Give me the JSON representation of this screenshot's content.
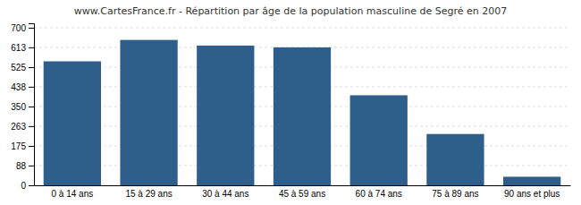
{
  "chart_data": {
    "type": "bar",
    "title": "www.CartesFrance.fr - Répartition par âge de la population masculine de Segré en 2007",
    "categories": [
      "0 à 14 ans",
      "15 à 29 ans",
      "30 à 44 ans",
      "45 à 59 ans",
      "60 à 74 ans",
      "75 à 89 ans",
      "90 ans et plus"
    ],
    "values": [
      551,
      646,
      621,
      613,
      400,
      228,
      38
    ],
    "color": "#2e5f8a",
    "ylim": [
      0,
      720
    ],
    "yticks": [
      0,
      88,
      175,
      263,
      350,
      438,
      525,
      613,
      700
    ],
    "grid": true
  }
}
